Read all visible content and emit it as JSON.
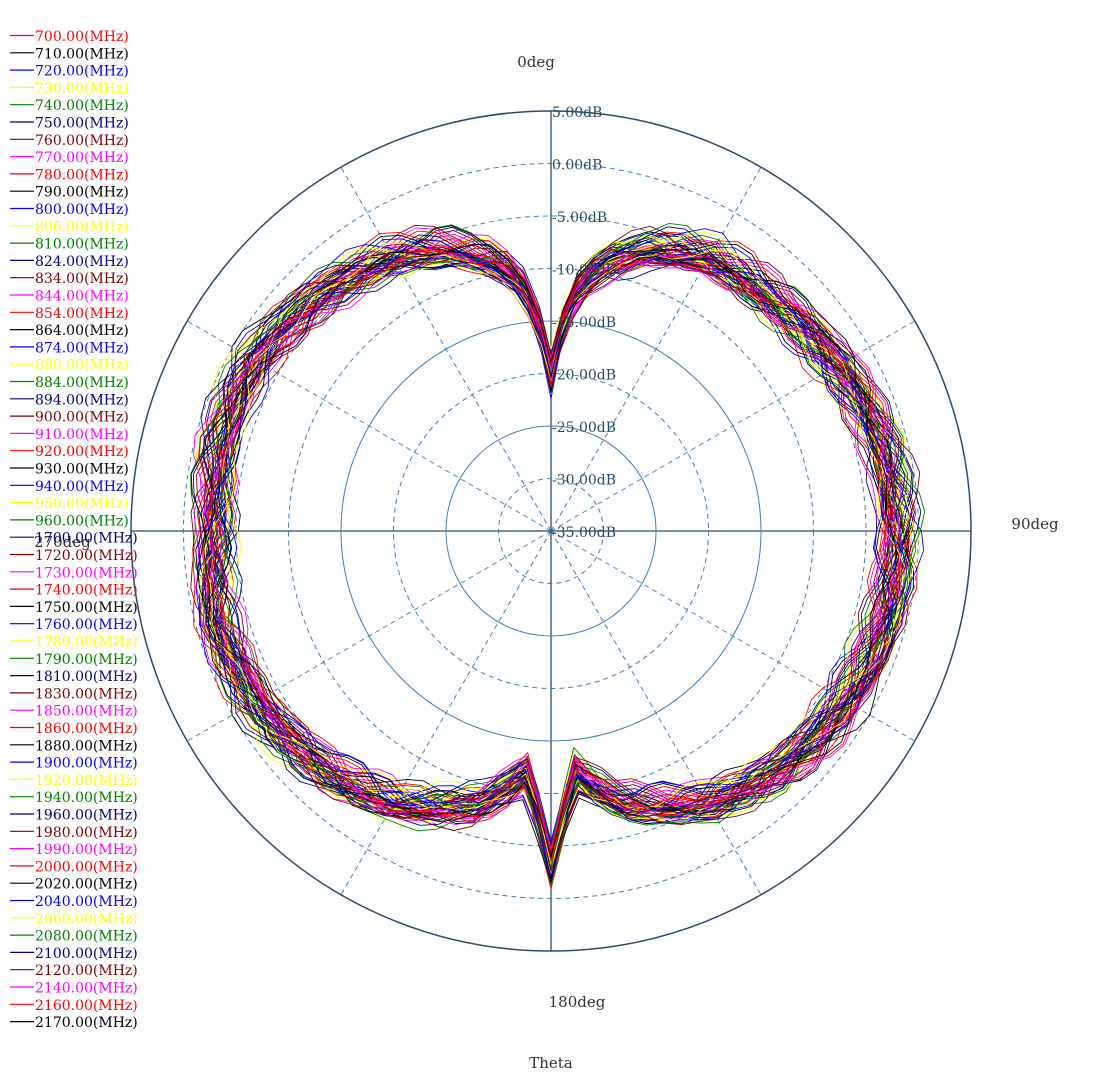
{
  "chart_data": {
    "type": "polar-line",
    "xlabel": "Theta",
    "angle_unit": "deg",
    "angle_zero": "top",
    "angle_direction": "clockwise",
    "angle_labels": [
      {
        "angle": 0,
        "label": "0deg"
      },
      {
        "angle": 90,
        "label": "90deg"
      },
      {
        "angle": 180,
        "label": "180deg"
      },
      {
        "angle": 270,
        "label": "270deg"
      }
    ],
    "radial_range": [
      -35,
      5
    ],
    "radial_ticks": [
      {
        "value": 5,
        "label": "5.00dB",
        "style": "solid"
      },
      {
        "value": 0,
        "label": "0.00dB",
        "style": "dashed"
      },
      {
        "value": -5,
        "label": "-5.00dB",
        "style": "dashed"
      },
      {
        "value": -10,
        "label": "-10.00dB",
        "style": "dashed"
      },
      {
        "value": -15,
        "label": "-15.00dB",
        "style": "solid"
      },
      {
        "value": -20,
        "label": "-20.00dB",
        "style": "dashed"
      },
      {
        "value": -25,
        "label": "-25.00dB",
        "style": "solid"
      },
      {
        "value": -30,
        "label": "-30.00dB",
        "style": "dashed"
      },
      {
        "value": -35,
        "label": "-35.00dB",
        "style": "solid"
      }
    ],
    "spoke_step_deg": 30,
    "grid": true,
    "legend_position": "top-left",
    "pattern_profile": {
      "theta": [
        0,
        5,
        10,
        20,
        30,
        45,
        60,
        75,
        90,
        105,
        120,
        135,
        150,
        165,
        170,
        175,
        180,
        185,
        190,
        195,
        210,
        225,
        240,
        255,
        270,
        285,
        300,
        315,
        330,
        340,
        350,
        355,
        360
      ],
      "gain_db": [
        -20,
        -13,
        -9.5,
        -6.5,
        -5,
        -4.5,
        -3.5,
        -2.5,
        -2,
        -2,
        -2.5,
        -3.5,
        -5,
        -8,
        -10,
        -12,
        -3,
        -12,
        -10,
        -8,
        -5,
        -3.5,
        -2.5,
        -2,
        -3,
        -2.5,
        -2.5,
        -3.5,
        -5,
        -6.5,
        -9.5,
        -13,
        -20
      ]
    },
    "series": [
      {
        "name": "700.00(MHz)",
        "color": "#ff0000"
      },
      {
        "name": "710.00(MHz)",
        "color": "#000000"
      },
      {
        "name": "720.00(MHz)",
        "color": "#0000ff"
      },
      {
        "name": "730.00(MHz)",
        "color": "#ffff00"
      },
      {
        "name": "740.00(MHz)",
        "color": "#008000"
      },
      {
        "name": "750.00(MHz)",
        "color": "#000080"
      },
      {
        "name": "760.00(MHz)",
        "color": "#800000"
      },
      {
        "name": "770.00(MHz)",
        "color": "#ff00ff"
      },
      {
        "name": "780.00(MHz)",
        "color": "#ff0000"
      },
      {
        "name": "790.00(MHz)",
        "color": "#000000"
      },
      {
        "name": "800.00(MHz)",
        "color": "#0000ff"
      },
      {
        "name": "806.00(MHz)",
        "color": "#ffff00"
      },
      {
        "name": "810.00(MHz)",
        "color": "#008000"
      },
      {
        "name": "824.00(MHz)",
        "color": "#000080"
      },
      {
        "name": "834.00(MHz)",
        "color": "#800000"
      },
      {
        "name": "844.00(MHz)",
        "color": "#ff00ff"
      },
      {
        "name": "854.00(MHz)",
        "color": "#ff0000"
      },
      {
        "name": "864.00(MHz)",
        "color": "#000000"
      },
      {
        "name": "874.00(MHz)",
        "color": "#0000ff"
      },
      {
        "name": "880.00(MHz)",
        "color": "#ffff00"
      },
      {
        "name": "884.00(MHz)",
        "color": "#008000"
      },
      {
        "name": "894.00(MHz)",
        "color": "#000080"
      },
      {
        "name": "900.00(MHz)",
        "color": "#800000"
      },
      {
        "name": "910.00(MHz)",
        "color": "#ff00ff"
      },
      {
        "name": "920.00(MHz)",
        "color": "#ff0000"
      },
      {
        "name": "930.00(MHz)",
        "color": "#000000"
      },
      {
        "name": "940.00(MHz)",
        "color": "#0000ff"
      },
      {
        "name": "950.00(MHz)",
        "color": "#ffff00"
      },
      {
        "name": "960.00(MHz)",
        "color": "#008000"
      },
      {
        "name": "1700.00(MHz)",
        "color": "#000080"
      },
      {
        "name": "1720.00(MHz)",
        "color": "#800000"
      },
      {
        "name": "1730.00(MHz)",
        "color": "#ff00ff"
      },
      {
        "name": "1740.00(MHz)",
        "color": "#ff0000"
      },
      {
        "name": "1750.00(MHz)",
        "color": "#000000"
      },
      {
        "name": "1760.00(MHz)",
        "color": "#0000ff"
      },
      {
        "name": "1780.00(MHz)",
        "color": "#ffff00"
      },
      {
        "name": "1790.00(MHz)",
        "color": "#008000"
      },
      {
        "name": "1810.00(MHz)",
        "color": "#000080"
      },
      {
        "name": "1830.00(MHz)",
        "color": "#800000"
      },
      {
        "name": "1850.00(MHz)",
        "color": "#ff00ff"
      },
      {
        "name": "1860.00(MHz)",
        "color": "#ff0000"
      },
      {
        "name": "1880.00(MHz)",
        "color": "#000000"
      },
      {
        "name": "1900.00(MHz)",
        "color": "#0000ff"
      },
      {
        "name": "1920.00(MHz)",
        "color": "#ffff00"
      },
      {
        "name": "1940.00(MHz)",
        "color": "#008000"
      },
      {
        "name": "1960.00(MHz)",
        "color": "#000080"
      },
      {
        "name": "1980.00(MHz)",
        "color": "#800000"
      },
      {
        "name": "1990.00(MHz)",
        "color": "#ff00ff"
      },
      {
        "name": "2000.00(MHz)",
        "color": "#ff0000"
      },
      {
        "name": "2020.00(MHz)",
        "color": "#000000"
      },
      {
        "name": "2040.00(MHz)",
        "color": "#0000ff"
      },
      {
        "name": "2060.00(MHz)",
        "color": "#ffff00"
      },
      {
        "name": "2080.00(MHz)",
        "color": "#008000"
      },
      {
        "name": "2100.00(MHz)",
        "color": "#000080"
      },
      {
        "name": "2120.00(MHz)",
        "color": "#800000"
      },
      {
        "name": "2140.00(MHz)",
        "color": "#ff00ff"
      },
      {
        "name": "2160.00(MHz)",
        "color": "#ff0000"
      },
      {
        "name": "2170.00(MHz)",
        "color": "#000000"
      }
    ]
  }
}
